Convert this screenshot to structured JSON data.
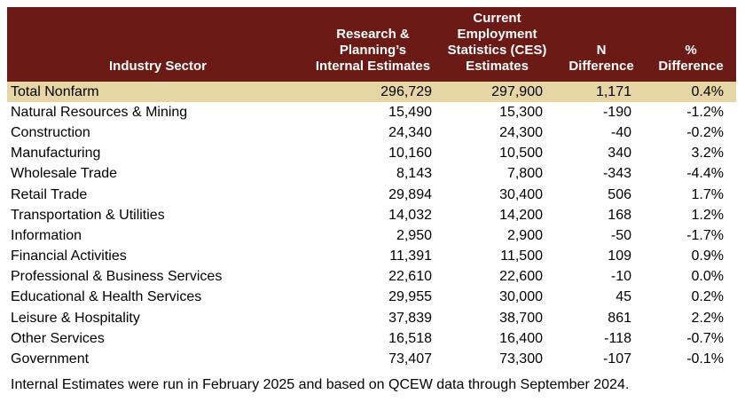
{
  "table": {
    "headers": [
      "Industry Sector",
      "Research & Planning's Internal Estimates",
      "Current Employment Statistics (CES) Estimates",
      "N Difference",
      "% Difference"
    ],
    "header_lines": [
      [
        "Industry Sector"
      ],
      [
        "Research &",
        "Planning’s",
        "Internal Estimates"
      ],
      [
        "Current",
        "Employment",
        "Statistics (CES)",
        "Estimates"
      ],
      [
        "N",
        "Difference"
      ],
      [
        "%",
        "Difference"
      ]
    ],
    "total_row": [
      "Total Nonfarm",
      "296,729",
      "297,900",
      "1,171",
      "0.4%"
    ],
    "rows": [
      [
        "Natural Resources & Mining",
        "15,490",
        "15,300",
        "-190",
        "-1.2%"
      ],
      [
        "Construction",
        "24,340",
        "24,300",
        "-40",
        "-0.2%"
      ],
      [
        "Manufacturing",
        "10,160",
        "10,500",
        "340",
        "3.2%"
      ],
      [
        "Wholesale Trade",
        "8,143",
        "7,800",
        "-343",
        "-4.4%"
      ],
      [
        "Retail Trade",
        "29,894",
        "30,400",
        "506",
        "1.7%"
      ],
      [
        "Transportation & Utilities",
        "14,032",
        "14,200",
        "168",
        "1.2%"
      ],
      [
        "Information",
        "2,950",
        "2,900",
        "-50",
        "-1.7%"
      ],
      [
        "Financial Activities",
        "11,391",
        "11,500",
        "109",
        "0.9%"
      ],
      [
        "Professional & Business Services",
        "22,610",
        "22,600",
        "-10",
        "0.0%"
      ],
      [
        "Educational & Health Services",
        "29,955",
        "30,000",
        "45",
        "0.2%"
      ],
      [
        "Leisure & Hospitality",
        "37,839",
        "38,700",
        "861",
        "2.2%"
      ],
      [
        "Other Services",
        "16,518",
        "16,400",
        "-118",
        "-0.7%"
      ],
      [
        "Government",
        "73,407",
        "73,300",
        "-107",
        "-0.1%"
      ]
    ]
  },
  "note": "Internal Estimates were run in February 2025 and based on QCEW data through September 2024.",
  "colors": {
    "header_bg": "#6b1a16",
    "header_text": "#ffffff",
    "total_row_bg": "#e6d6a6"
  }
}
